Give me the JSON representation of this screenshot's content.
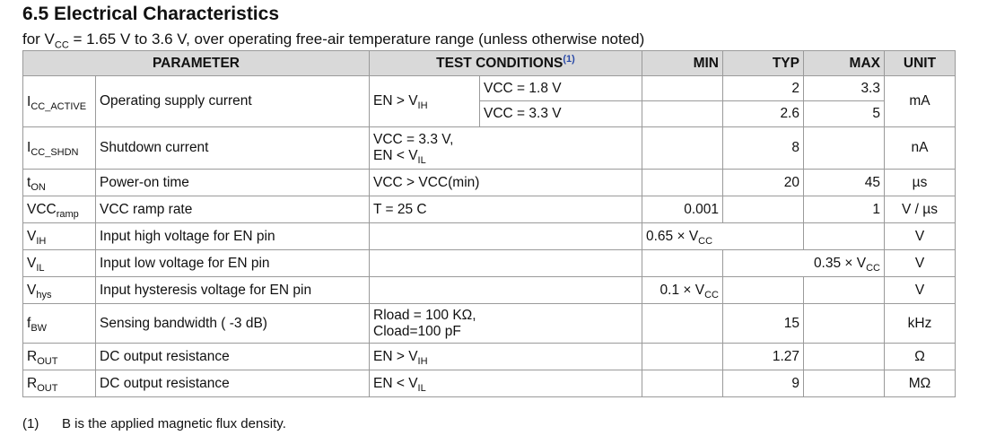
{
  "section_title": "6.5 Electrical Characteristics",
  "subtitle": {
    "prefix": "for V",
    "sub": "CC",
    "suffix": " = 1.65 V to 3.6 V, over operating free-air temperature range (unless otherwise noted)"
  },
  "table": {
    "headers": {
      "parameter": "PARAMETER",
      "test_conditions": "TEST CONDITIONS",
      "test_conditions_note": "(1)",
      "min": "MIN",
      "typ": "TYP",
      "max": "MAX",
      "unit": "UNIT"
    },
    "rows": [
      {
        "sym_main": "I",
        "sym_sub": "CC_ACTIVE",
        "param": "Operating supply current",
        "cond_main": "EN > V",
        "cond_main_sub": "IH",
        "sub_cond_1": "VCC = 1.8 V",
        "sub_cond_2": "VCC = 3.3 V",
        "typ_1": "2",
        "max_1": "3.3",
        "typ_2": "2.6",
        "max_2": "5",
        "unit": "mA"
      },
      {
        "sym_main": "I",
        "sym_sub": "CC_SHDN",
        "param": "Shutdown current",
        "cond_line1": "VCC = 3.3 V,",
        "cond_line2_main": "EN < V",
        "cond_line2_sub": "IL",
        "typ": "8",
        "unit": "nA"
      },
      {
        "sym_main": "t",
        "sym_sub": "ON",
        "param": "Power-on time",
        "cond": "VCC > VCC(min)",
        "typ": "20",
        "max": "45",
        "unit": "µs"
      },
      {
        "sym_main": "VCC",
        "sym_sub": "ramp",
        "param": "VCC ramp rate",
        "cond": "T = 25 C",
        "min": "0.001",
        "max": "1",
        "unit": "V / µs"
      },
      {
        "sym_main": "V",
        "sym_sub": "IH",
        "param": "Input high voltage for EN pin",
        "min_main": "0.65 × V",
        "min_sub": "CC",
        "unit": "V"
      },
      {
        "sym_main": "V",
        "sym_sub": "IL",
        "param": "Input low voltage for EN pin",
        "max_main": "0.35 × V",
        "max_sub": "CC",
        "unit": "V"
      },
      {
        "sym_main": "V",
        "sym_sub": "hys",
        "param": "Input hysteresis voltage for EN pin",
        "min_main": "0.1 × V",
        "min_sub": "CC",
        "unit": "V"
      },
      {
        "sym_main": "f",
        "sym_sub": "BW",
        "param": "Sensing bandwidth ( -3 dB)",
        "cond_line1": "Rload = 100 KΩ,",
        "cond_line2": "Cload=100 pF",
        "typ": "15",
        "unit": "kHz"
      },
      {
        "sym_main": "R",
        "sym_sub": "OUT",
        "param": "DC output resistance",
        "cond_main": "EN > V",
        "cond_sub": "IH",
        "typ": "1.27",
        "unit": "Ω"
      },
      {
        "sym_main": "R",
        "sym_sub": "OUT",
        "param": "DC output resistance",
        "cond_main": "EN <  V",
        "cond_sub": "IL",
        "typ": "9",
        "unit": "MΩ"
      }
    ]
  },
  "footnote": {
    "marker": "(1)",
    "text": "B is the applied magnetic flux density."
  }
}
